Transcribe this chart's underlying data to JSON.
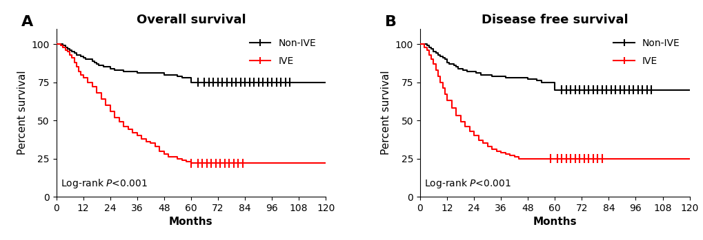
{
  "panel_A": {
    "title": "Overall survival",
    "label": "A",
    "non_ive": {
      "times": [
        0,
        2,
        3,
        4,
        5,
        6,
        7,
        8,
        9,
        10,
        11,
        12,
        13,
        14,
        15,
        16,
        17,
        18,
        19,
        20,
        21,
        22,
        24,
        25,
        26,
        27,
        28,
        30,
        32,
        34,
        36,
        38,
        40,
        42,
        44,
        46,
        48,
        50,
        52,
        54,
        56,
        60,
        62,
        66,
        72,
        78,
        84,
        96,
        120
      ],
      "survival": [
        100,
        100,
        99,
        98,
        97,
        96,
        95,
        94,
        93,
        93,
        92,
        91,
        90,
        90,
        90,
        89,
        88,
        87,
        86,
        86,
        85,
        85,
        84,
        84,
        83,
        83,
        83,
        82,
        82,
        82,
        81,
        81,
        81,
        81,
        81,
        81,
        80,
        80,
        80,
        79,
        78,
        75,
        75,
        75,
        75,
        75,
        75,
        75,
        75
      ],
      "censors": [
        63,
        66,
        68,
        70,
        72,
        74,
        76,
        78,
        80,
        82,
        84,
        86,
        88,
        90,
        92,
        94,
        96,
        98,
        100,
        102,
        104
      ],
      "censor_y": [
        75,
        75,
        75,
        75,
        75,
        75,
        75,
        75,
        75,
        75,
        75,
        75,
        75,
        75,
        75,
        75,
        75,
        75,
        75,
        75,
        75
      ]
    },
    "ive": {
      "times": [
        0,
        2,
        3,
        4,
        5,
        6,
        7,
        8,
        9,
        10,
        11,
        12,
        14,
        16,
        18,
        20,
        22,
        24,
        26,
        28,
        30,
        32,
        34,
        36,
        38,
        40,
        42,
        44,
        46,
        48,
        50,
        52,
        54,
        56,
        58,
        60,
        62,
        64,
        68,
        72,
        84,
        96,
        120
      ],
      "survival": [
        100,
        99,
        98,
        96,
        95,
        93,
        91,
        88,
        85,
        82,
        80,
        78,
        75,
        72,
        68,
        64,
        60,
        56,
        52,
        49,
        46,
        44,
        42,
        40,
        38,
        36,
        35,
        33,
        30,
        28,
        26,
        26,
        25,
        24,
        23,
        22,
        22,
        22,
        22,
        22,
        22,
        22,
        22
      ],
      "censors": [
        60,
        63,
        65,
        67,
        69,
        71,
        73,
        75,
        77,
        79,
        81,
        83
      ],
      "censor_y": [
        22,
        22,
        22,
        22,
        22,
        22,
        22,
        22,
        22,
        22,
        22,
        22
      ]
    }
  },
  "panel_B": {
    "title": "Disease free survival",
    "label": "B",
    "non_ive": {
      "times": [
        0,
        2,
        3,
        4,
        5,
        6,
        7,
        8,
        9,
        10,
        11,
        12,
        13,
        14,
        15,
        16,
        17,
        18,
        19,
        20,
        21,
        22,
        24,
        25,
        26,
        27,
        28,
        30,
        32,
        34,
        36,
        38,
        40,
        42,
        44,
        46,
        48,
        50,
        52,
        54,
        56,
        58,
        60,
        62,
        66,
        72,
        78,
        84,
        96,
        120
      ],
      "survival": [
        100,
        100,
        99,
        98,
        97,
        95,
        94,
        93,
        92,
        91,
        90,
        88,
        87,
        87,
        86,
        85,
        84,
        84,
        83,
        83,
        82,
        82,
        82,
        81,
        81,
        80,
        80,
        80,
        79,
        79,
        79,
        78,
        78,
        78,
        78,
        78,
        77,
        77,
        76,
        75,
        75,
        75,
        70,
        70,
        70,
        70,
        70,
        70,
        70,
        70
      ],
      "censors": [
        63,
        65,
        67,
        69,
        71,
        73,
        75,
        77,
        79,
        81,
        83,
        85,
        87,
        89,
        91,
        93,
        95,
        97,
        99,
        101,
        103
      ],
      "censor_y": [
        70,
        70,
        70,
        70,
        70,
        70,
        70,
        70,
        70,
        70,
        70,
        70,
        70,
        70,
        70,
        70,
        70,
        70,
        70,
        70,
        70
      ]
    },
    "ive": {
      "times": [
        0,
        2,
        3,
        4,
        5,
        6,
        7,
        8,
        9,
        10,
        11,
        12,
        14,
        16,
        18,
        20,
        22,
        24,
        26,
        28,
        30,
        32,
        34,
        36,
        38,
        40,
        42,
        44,
        46,
        48,
        50,
        52,
        54,
        56,
        58,
        60,
        62,
        64,
        68,
        72,
        84,
        96,
        120
      ],
      "survival": [
        100,
        98,
        96,
        93,
        90,
        87,
        83,
        79,
        75,
        71,
        67,
        63,
        58,
        53,
        49,
        46,
        43,
        40,
        37,
        35,
        33,
        31,
        30,
        29,
        28,
        27,
        26,
        25,
        25,
        25,
        25,
        25,
        25,
        25,
        25,
        25,
        25,
        25,
        25,
        25,
        25,
        25,
        25
      ],
      "censors": [
        58,
        61,
        63,
        65,
        67,
        69,
        71,
        73,
        75,
        77,
        79,
        81
      ],
      "censor_y": [
        25,
        25,
        25,
        25,
        25,
        25,
        25,
        25,
        25,
        25,
        25,
        25
      ]
    }
  },
  "xlabel": "Months",
  "ylabel": "Percent survival",
  "xlim": [
    0,
    120
  ],
  "ylim": [
    0,
    110
  ],
  "xticks": [
    0,
    12,
    24,
    36,
    48,
    60,
    72,
    84,
    96,
    108,
    120
  ],
  "yticks": [
    0,
    25,
    50,
    75,
    100
  ],
  "non_ive_color": "#000000",
  "ive_color": "#FF0000",
  "line_width": 1.5,
  "font_size": 11,
  "title_font_size": 13,
  "label_font_size": 16,
  "tick_font_size": 10,
  "annot_font_size": 10,
  "legend_font_size": 10,
  "censor_half_height": 2.5
}
